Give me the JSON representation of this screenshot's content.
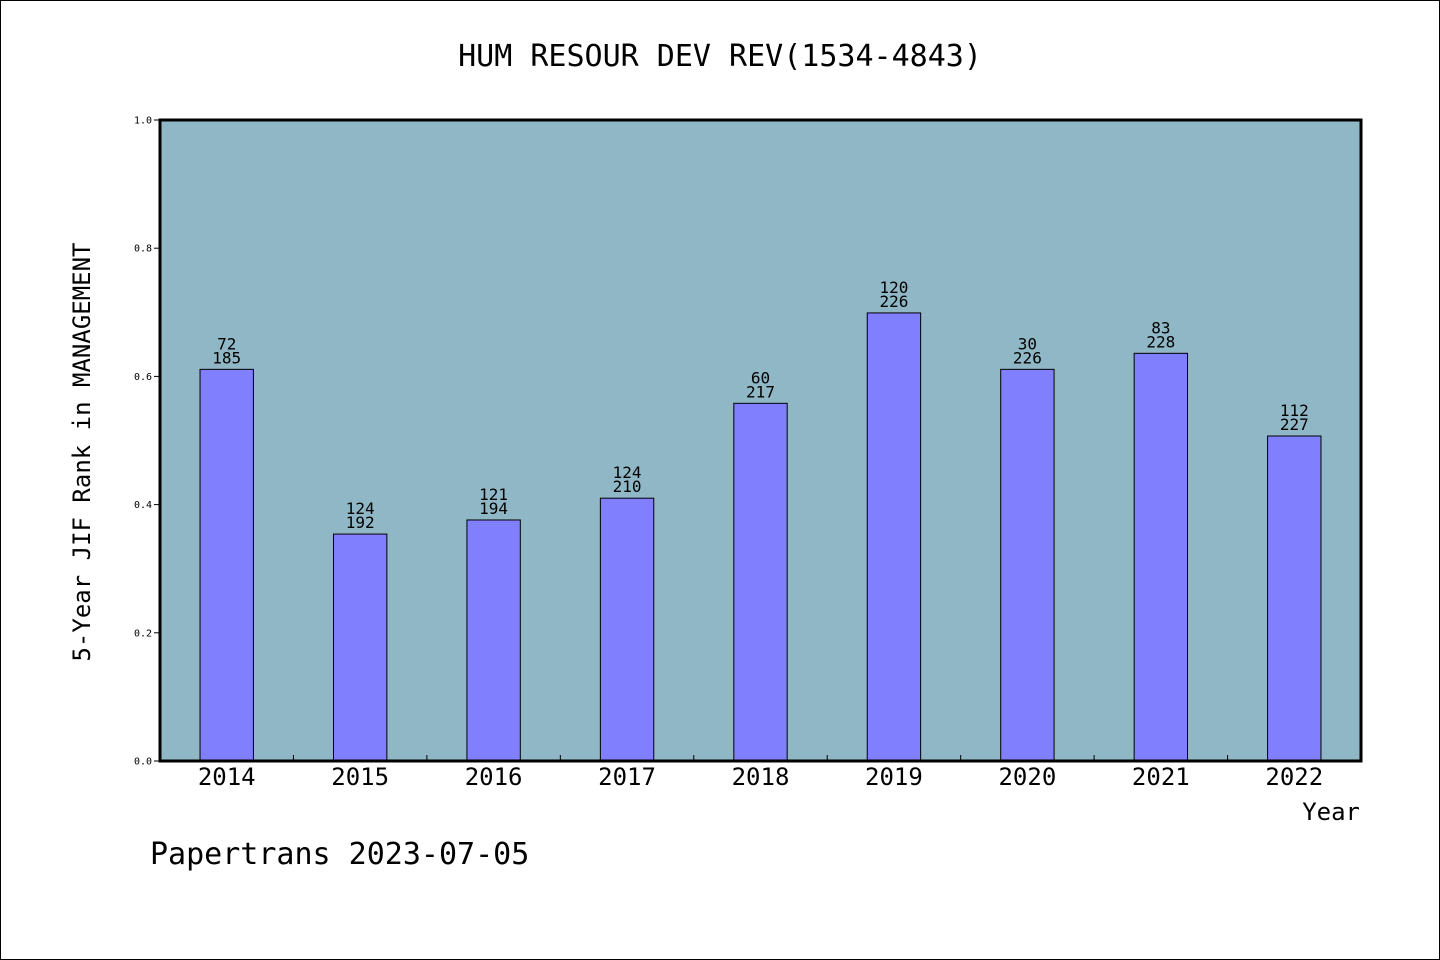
{
  "chart_data": {
    "type": "bar",
    "title": "HUM RESOUR DEV REV(1534-4843)",
    "xlabel": "Year",
    "ylabel": "5-Year JIF Rank in MANAGEMENT",
    "ylim": [
      0,
      1.0
    ],
    "yticks": [
      "0.0",
      "0.2",
      "0.4",
      "0.6",
      "0.8",
      "1.0"
    ],
    "categories": [
      "2014",
      "2015",
      "2016",
      "2017",
      "2018",
      "2019",
      "2020",
      "2021",
      "2022"
    ],
    "values": [
      0.611,
      0.354,
      0.376,
      0.41,
      0.558,
      0.699,
      0.611,
      0.636,
      0.507
    ],
    "rank": [
      "72",
      "124",
      "121",
      "124",
      "60",
      "120",
      "30",
      "83",
      "112"
    ],
    "total": [
      "185",
      "192",
      "194",
      "210",
      "217",
      "226",
      "226",
      "228",
      "227"
    ],
    "grid": false,
    "colors": {
      "plot_background": "#8fb7c5",
      "bar": "#8080ff",
      "bar_edge": "#000000",
      "axis": "#000000"
    }
  },
  "footer": "Papertrans 2023-07-05"
}
